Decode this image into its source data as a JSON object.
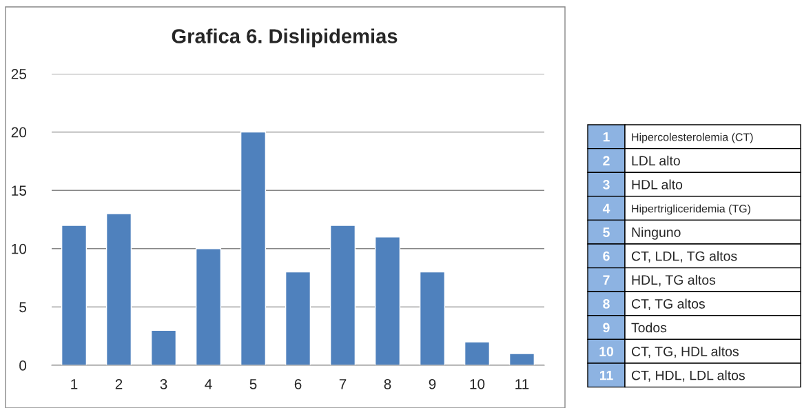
{
  "chart_data": {
    "type": "bar",
    "title": "Grafica 6. Dislipidemias",
    "categories": [
      "1",
      "2",
      "3",
      "4",
      "5",
      "6",
      "7",
      "8",
      "9",
      "10",
      "11"
    ],
    "values": [
      12,
      13,
      3,
      10,
      20,
      8,
      12,
      11,
      8,
      2,
      1
    ],
    "color": "#4f81bd",
    "ylim": [
      0,
      25
    ],
    "yticks": [
      0,
      5,
      10,
      15,
      20,
      25
    ],
    "grid": "y",
    "annotations": [
      "Hipercolesterolemia (CT)",
      "LDL alto",
      "HDL alto",
      "Hipertrigliceridemia (TG)",
      "Ninguno",
      "CT, LDL, TG altos",
      "HDL, TG altos",
      "CT, TG altos",
      "Todos",
      "CT, TG, HDL altos",
      "CT, HDL, LDL altos"
    ]
  }
}
